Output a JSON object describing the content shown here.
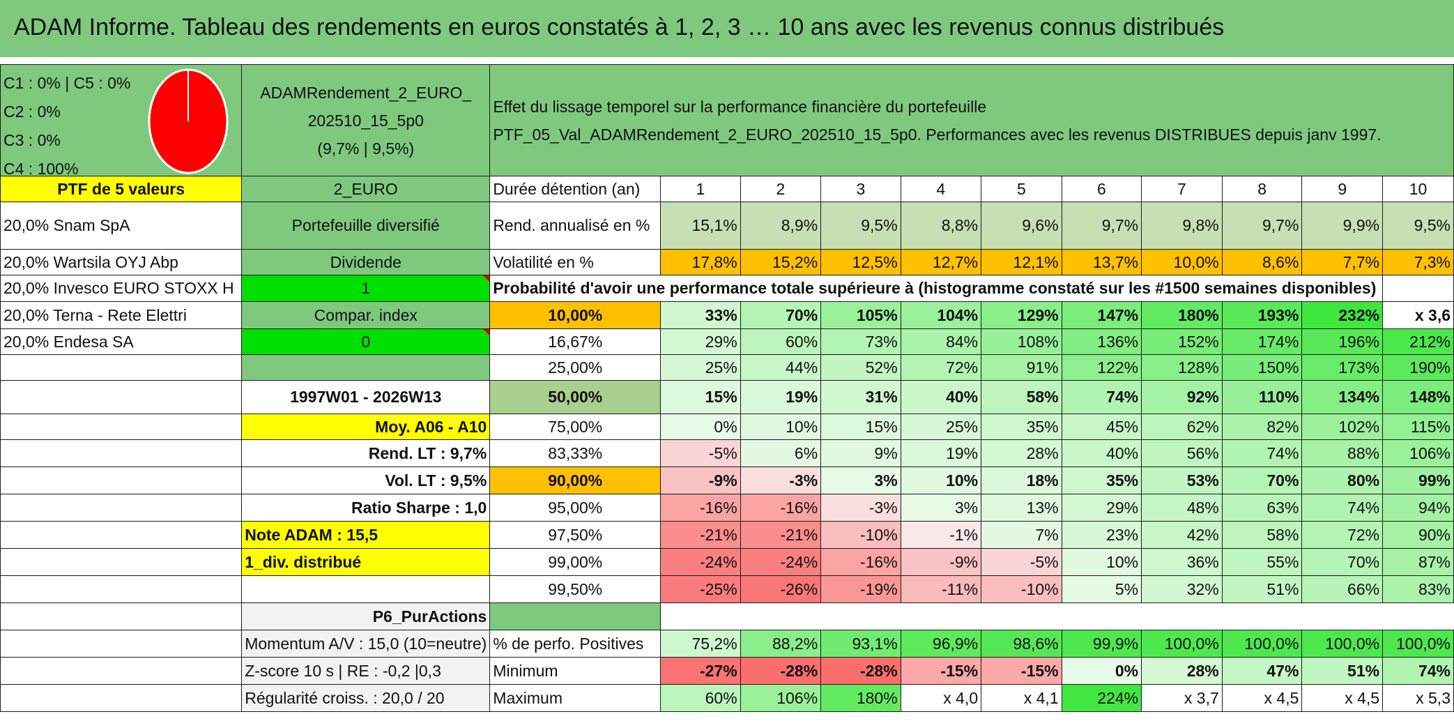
{
  "title": "ADAM Informe. Tableau des rendements en euros constatés à 1, 2, 3 … 10 ans avec les revenus connus distribués",
  "allocation": {
    "lines": [
      "C1 : 0% | C5 : 0%",
      "C2 : 0%",
      "C3 : 0%",
      "C4 : 100%"
    ],
    "pie_color": "#ff0000"
  },
  "portfolio": {
    "name_line1": "ADAMRendement_2_EURO_",
    "name_line2": "202510_15_5p0",
    "name_line3": "(9,7% | 9,5%)",
    "description_line1": "Effet du lissage temporel sur la performance financière du portefeuille",
    "description_line2": "PTF_05_Val_ADAMRendement_2_EURO_202510_15_5p0. Performances avec les revenus DISTRIBUES depuis janv 1997.",
    "ptf_label": "PTF de 5 valeurs",
    "code": "2_EURO"
  },
  "holdings": [
    "20,0% Snam SpA",
    "20,0% Wartsila OYJ Abp",
    "20,0% Invesco EURO STOXX H",
    "20,0% Terna - Rete Elettri",
    "20,0% Endesa SA"
  ],
  "mid_labels": {
    "type": "Portefeuille diversifié",
    "dividend": "Dividende",
    "flag1": "1",
    "compar": "Compar. index",
    "flag0": "0"
  },
  "side_info": {
    "period": "1997W01 - 2026W13",
    "moy": "Moy. A06 - A10",
    "rend_lt": "Rend. LT : 9,7%",
    "vol_lt": "Vol. LT : 9,5%",
    "sharpe": "Ratio Sharpe : 1,0",
    "note": "Note ADAM : 15,5",
    "div": "1_div. distribué",
    "p6": "P6_PurActions",
    "momentum": "Momentum A/V : 15,0 (10=neutre)",
    "zscore": "Z-score 10 s | RE : -0,2 |0,3",
    "regularite": "Régularité croiss. : 20,0 / 20"
  },
  "table": {
    "duration_label": "Durée détention (an)",
    "years": [
      "1",
      "2",
      "3",
      "4",
      "5",
      "6",
      "7",
      "8",
      "9",
      "10"
    ],
    "rend_label": "Rend. annualisé en %",
    "rend": [
      "15,1%",
      "8,9%",
      "9,5%",
      "8,8%",
      "9,6%",
      "9,7%",
      "9,8%",
      "9,7%",
      "9,9%",
      "9,5%"
    ],
    "vol_label": "Volatilité en %",
    "vol": [
      "17,8%",
      "15,2%",
      "12,5%",
      "12,7%",
      "12,1%",
      "13,7%",
      "10,0%",
      "8,6%",
      "7,7%",
      "7,3%"
    ],
    "proba_label": "Probabilité d'avoir une performance totale supérieure à (histogramme constaté sur les #1500 semaines disponibles)",
    "quantiles": [
      {
        "q": "10,00%",
        "v": [
          "33%",
          "70%",
          "105%",
          "104%",
          "129%",
          "147%",
          "180%",
          "193%",
          "232%",
          "x 3,6"
        ]
      },
      {
        "q": "16,67%",
        "v": [
          "29%",
          "60%",
          "73%",
          "84%",
          "108%",
          "136%",
          "152%",
          "174%",
          "196%",
          "212%"
        ]
      },
      {
        "q": "25,00%",
        "v": [
          "25%",
          "44%",
          "52%",
          "72%",
          "91%",
          "122%",
          "128%",
          "150%",
          "173%",
          "190%"
        ]
      },
      {
        "q": "50,00%",
        "v": [
          "15%",
          "19%",
          "31%",
          "40%",
          "58%",
          "74%",
          "92%",
          "110%",
          "134%",
          "148%"
        ]
      },
      {
        "q": "75,00%",
        "v": [
          "0%",
          "10%",
          "15%",
          "25%",
          "35%",
          "45%",
          "62%",
          "82%",
          "102%",
          "115%"
        ]
      },
      {
        "q": "83,33%",
        "v": [
          "-5%",
          "6%",
          "9%",
          "19%",
          "28%",
          "40%",
          "56%",
          "74%",
          "88%",
          "106%"
        ]
      },
      {
        "q": "90,00%",
        "v": [
          "-9%",
          "-3%",
          "3%",
          "10%",
          "18%",
          "35%",
          "53%",
          "70%",
          "80%",
          "99%"
        ]
      },
      {
        "q": "95,00%",
        "v": [
          "-16%",
          "-16%",
          "-3%",
          "3%",
          "13%",
          "29%",
          "48%",
          "63%",
          "74%",
          "94%"
        ]
      },
      {
        "q": "97,50%",
        "v": [
          "-21%",
          "-21%",
          "-10%",
          "-1%",
          "7%",
          "23%",
          "42%",
          "58%",
          "72%",
          "90%"
        ]
      },
      {
        "q": "99,00%",
        "v": [
          "-24%",
          "-24%",
          "-16%",
          "-9%",
          "-5%",
          "10%",
          "36%",
          "55%",
          "70%",
          "87%"
        ]
      },
      {
        "q": "99,50%",
        "v": [
          "-25%",
          "-26%",
          "-19%",
          "-11%",
          "-10%",
          "5%",
          "32%",
          "51%",
          "66%",
          "83%"
        ]
      }
    ],
    "pos_label": "% de perfo. Positives",
    "pos": [
      "75,2%",
      "88,2%",
      "93,1%",
      "96,9%",
      "98,6%",
      "99,9%",
      "100,0%",
      "100,0%",
      "100,0%",
      "100,0%"
    ],
    "min_label": "Minimum",
    "min": [
      "-27%",
      "-28%",
      "-28%",
      "-15%",
      "-15%",
      "0%",
      "28%",
      "47%",
      "51%",
      "74%"
    ],
    "max_label": "Maximum",
    "max": [
      "60%",
      "106%",
      "180%",
      "x 4,0",
      "x 4,1",
      "224%",
      "x 3,7",
      "x 4,5",
      "x 4,5",
      "x 5,3"
    ]
  },
  "colors": {
    "banner": "#7fc97f",
    "yellow": "#ffff00",
    "orange": "#ffc000",
    "bright_green": "#00e000",
    "red_text": "#e00000"
  }
}
